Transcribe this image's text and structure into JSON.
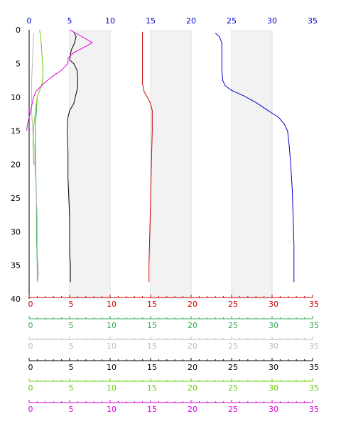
{
  "colors": {
    "grid_band": "#f2f2f2",
    "grid_line": "#dddddd",
    "top_axis": "#0000cc",
    "left_axis": "#000000"
  },
  "chart_data": {
    "type": "line",
    "orientation": "vertical-profile",
    "grid": true,
    "y_axis": {
      "range": [
        0,
        40
      ],
      "inverted": true,
      "ticks": [
        0,
        5,
        10,
        15,
        20,
        25,
        30,
        35,
        40
      ]
    },
    "x_axes": [
      {
        "id": "blue",
        "position": "top",
        "range": [
          0,
          35
        ],
        "ticks": [
          0,
          5,
          10,
          15,
          20,
          25,
          30,
          35
        ],
        "color": "#0000cc"
      },
      {
        "id": "red",
        "position": "bottom",
        "range": [
          0,
          35
        ],
        "ticks": [
          0,
          5,
          10,
          15,
          20,
          25,
          30,
          35
        ],
        "color": "#cc0000"
      },
      {
        "id": "teal",
        "position": "bottom",
        "range": [
          0,
          35
        ],
        "ticks": [
          0,
          5,
          10,
          15,
          20,
          25,
          30,
          35
        ],
        "color": "#33aa55"
      },
      {
        "id": "gray",
        "position": "bottom",
        "range": [
          0,
          35
        ],
        "ticks": [
          0,
          5,
          10,
          15,
          20,
          25,
          30,
          35
        ],
        "color": "#bbbbbb"
      },
      {
        "id": "black",
        "position": "bottom",
        "range": [
          0,
          35
        ],
        "ticks": [
          0,
          5,
          10,
          15,
          20,
          25,
          30,
          35
        ],
        "color": "#000000"
      },
      {
        "id": "green",
        "position": "bottom",
        "range": [
          0,
          35
        ],
        "ticks": [
          0,
          5,
          10,
          15,
          20,
          25,
          30,
          35
        ],
        "color": "#66cc00"
      },
      {
        "id": "magenta",
        "position": "bottom",
        "range": [
          0,
          35
        ],
        "ticks": [
          0,
          5,
          10,
          15,
          20,
          25,
          30,
          35
        ],
        "color": "#dd00dd"
      }
    ],
    "series": [
      {
        "axis": "blue",
        "color": "#0000cc",
        "points": [
          [
            23,
            0.5
          ],
          [
            23.5,
            1
          ],
          [
            23.8,
            2
          ],
          [
            23.8,
            4
          ],
          [
            23.8,
            6
          ],
          [
            23.9,
            7.5
          ],
          [
            24.2,
            8.3
          ],
          [
            25,
            9
          ],
          [
            26.5,
            9.8
          ],
          [
            28,
            10.8
          ],
          [
            29.5,
            12
          ],
          [
            30.8,
            13
          ],
          [
            31.5,
            14
          ],
          [
            31.9,
            15
          ],
          [
            32.1,
            17
          ],
          [
            32.3,
            20
          ],
          [
            32.5,
            24
          ],
          [
            32.6,
            28
          ],
          [
            32.7,
            32
          ],
          [
            32.7,
            37.5
          ]
        ]
      },
      {
        "axis": "red",
        "color": "#cc0000",
        "points": [
          [
            14,
            0.3
          ],
          [
            14,
            2
          ],
          [
            14,
            5
          ],
          [
            14,
            8
          ],
          [
            14.2,
            9.2
          ],
          [
            14.6,
            10
          ],
          [
            15,
            11
          ],
          [
            15.2,
            12
          ],
          [
            15.2,
            13
          ],
          [
            15.2,
            15
          ],
          [
            15.1,
            20
          ],
          [
            15,
            25
          ],
          [
            14.9,
            30
          ],
          [
            14.8,
            35
          ],
          [
            14.8,
            37.5
          ]
        ]
      },
      {
        "axis": "teal",
        "color": "#33aa55",
        "points": [
          [
            1,
            10
          ],
          [
            0.9,
            12
          ],
          [
            0.8,
            14
          ],
          [
            0.8,
            17
          ],
          [
            0.8,
            20
          ],
          [
            0.9,
            25
          ],
          [
            0.9,
            30
          ],
          [
            1,
            35
          ],
          [
            1,
            37.5
          ]
        ]
      },
      {
        "axis": "gray",
        "color": "#bbbbbb",
        "points": [
          [
            0.6,
            0.5
          ],
          [
            0.5,
            2
          ],
          [
            0.4,
            5
          ],
          [
            0.3,
            8
          ],
          [
            0.3,
            10
          ],
          [
            0.3,
            12
          ],
          [
            0.4,
            14
          ],
          [
            0.5,
            16
          ],
          [
            0.7,
            18
          ],
          [
            0.7,
            20
          ],
          [
            0.8,
            22
          ],
          [
            0.9,
            25
          ],
          [
            1,
            28
          ],
          [
            1,
            30
          ],
          [
            1,
            33
          ],
          [
            1.1,
            35
          ],
          [
            1.2,
            36.2
          ],
          [
            1,
            37.5
          ]
        ]
      },
      {
        "axis": "black",
        "color": "#000000",
        "points": [
          [
            5.5,
            0.3
          ],
          [
            5.8,
            1
          ],
          [
            5.6,
            2
          ],
          [
            5.2,
            3
          ],
          [
            5,
            4.5
          ],
          [
            5.5,
            5
          ],
          [
            5.9,
            6
          ],
          [
            6,
            7
          ],
          [
            6,
            8.5
          ],
          [
            5.7,
            10
          ],
          [
            5.5,
            11
          ],
          [
            5,
            12
          ],
          [
            4.8,
            13
          ],
          [
            4.7,
            15
          ],
          [
            4.8,
            18
          ],
          [
            4.8,
            22
          ],
          [
            4.9,
            25
          ],
          [
            5,
            28
          ],
          [
            5,
            30
          ],
          [
            5,
            33
          ],
          [
            5.1,
            35
          ],
          [
            5.1,
            37.5
          ]
        ]
      },
      {
        "axis": "green",
        "color": "#66cc00",
        "points": [
          [
            1.3,
            0
          ],
          [
            1.5,
            2
          ],
          [
            1.6,
            4
          ],
          [
            1.7,
            6
          ],
          [
            1.7,
            7
          ],
          [
            1.6,
            8
          ],
          [
            1.3,
            9
          ],
          [
            1,
            10
          ],
          [
            0.8,
            12
          ],
          [
            0.6,
            14
          ],
          [
            0.5,
            16
          ],
          [
            0.5,
            18
          ],
          [
            0.6,
            20
          ]
        ]
      },
      {
        "axis": "magenta",
        "color": "#dd00dd",
        "points": [
          [
            5,
            0
          ],
          [
            6.5,
            1
          ],
          [
            7.8,
            1.9
          ],
          [
            6.8,
            2.6
          ],
          [
            5.5,
            3.4
          ],
          [
            4.8,
            4.2
          ],
          [
            4.8,
            5
          ],
          [
            4,
            6
          ],
          [
            2.8,
            7
          ],
          [
            1.8,
            8
          ],
          [
            0.8,
            9.2
          ],
          [
            0.5,
            10.2
          ],
          [
            0.2,
            12
          ],
          [
            -0.2,
            14
          ],
          [
            -0.3,
            15
          ]
        ]
      }
    ]
  }
}
